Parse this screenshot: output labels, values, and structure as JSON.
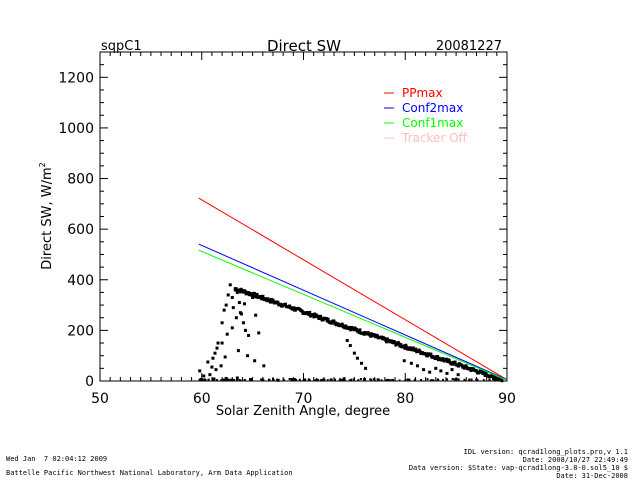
{
  "chart_data": {
    "type": "scatter",
    "title": "Direct SW",
    "site_label": "sqpC1",
    "date_label": "20081227",
    "xlabel": "Solar Zenith Angle, degree",
    "ylabel": "Direct SW, W/m",
    "ylabel_superscript": "2",
    "xlim": [
      50,
      90
    ],
    "ylim": [
      0,
      1300
    ],
    "xticks": [
      50,
      60,
      70,
      80,
      90
    ],
    "xtick_labels": [
      "50",
      "60",
      "70",
      "80",
      "90"
    ],
    "yticks": [
      0,
      200,
      400,
      600,
      800,
      1000,
      1200
    ],
    "ytick_labels": [
      "0",
      "200",
      "400",
      "600",
      "800",
      "1000",
      "1200"
    ],
    "grid": false,
    "legend_position": "top-right",
    "series": [
      {
        "name": "PPmax",
        "kind": "line",
        "color": "#ff0000",
        "x": [
          59.7,
          90
        ],
        "y": [
          723,
          5
        ]
      },
      {
        "name": "Conf2max",
        "kind": "line",
        "color": "#0000ff",
        "x": [
          59.7,
          90
        ],
        "y": [
          541,
          5
        ]
      },
      {
        "name": "Conf1max",
        "kind": "line",
        "color": "#00ff00",
        "x": [
          59.7,
          90
        ],
        "y": [
          517,
          3
        ]
      },
      {
        "name": "Tracker Off",
        "kind": "line",
        "color": "#ffc0c0",
        "x": [],
        "y": []
      },
      {
        "name": "Direct SW",
        "kind": "scatter",
        "color": "#000000",
        "band": {
          "x_start": 63.3,
          "y_start": 365,
          "x_end": 89.5,
          "y_end": 5
        },
        "x": [
          59.8,
          60.2,
          61.0,
          61.3,
          61.6,
          62.0,
          62.2,
          62.4,
          62.6,
          62.8,
          63.0,
          63.1,
          63.3,
          63.5,
          63.7,
          63.9,
          64.1,
          64.3,
          64.6,
          65.0,
          65.3,
          65.6,
          60.6,
          61.1,
          61.5,
          62.0,
          62.5,
          63.0,
          63.4,
          63.8,
          64.2,
          62.3,
          61.9,
          61.4,
          60.8,
          63.6,
          64.5,
          65.2,
          66.1,
          74.3,
          74.6,
          75.0,
          75.3,
          75.7,
          76.1,
          81.2,
          81.8,
          82.4,
          83.0,
          83.5,
          84.1,
          84.6,
          85.2,
          79.9,
          80.6,
          60.0,
          61.2,
          62.4,
          63.5,
          64.8,
          66.0,
          67.5,
          69.0,
          72.0,
          74.0,
          76.0
        ],
        "y": [
          40,
          20,
          55,
          110,
          150,
          230,
          280,
          300,
          340,
          380,
          330,
          290,
          360,
          350,
          310,
          265,
          230,
          200,
          180,
          330,
          260,
          190,
          75,
          90,
          130,
          150,
          185,
          210,
          250,
          270,
          305,
          95,
          60,
          45,
          25,
          120,
          100,
          80,
          60,
          160,
          140,
          110,
          90,
          70,
          50,
          60,
          45,
          35,
          50,
          40,
          30,
          45,
          25,
          80,
          70,
          5,
          8,
          10,
          12,
          6,
          4,
          3,
          5,
          4,
          8,
          6
        ]
      }
    ]
  },
  "footer": {
    "timestamp": "Wed Jan  7 02:04:12 2009",
    "org": "Battelle Pacific Northwest National Laboratory, Arm Data Application",
    "idl_version": "IDL version: qcrad1long_plots.pro,v 1.1",
    "idl_date": "Date: 2008/10/27 22:49:49",
    "data_version": "Data version: $State: vap-qcrad1long-3.8-0.sol5_10 $",
    "data_date": "Date: 31-Dec-2008"
  }
}
